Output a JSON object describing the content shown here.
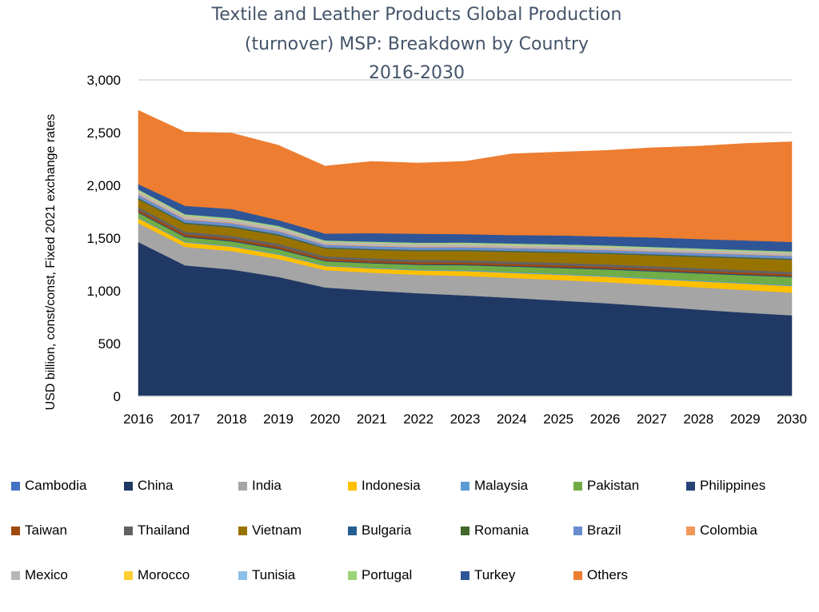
{
  "chart_data": {
    "type": "area",
    "stacked": true,
    "title_lines": [
      "Textile and Leather Products Global Production",
      "(turnover) MSP: Breakdown by Country",
      "2016-2030"
    ],
    "ylabel": "USD billion, const/const, Fixed 2021 exchange rates",
    "xlabel": "",
    "x": [
      "2016",
      "2017",
      "2018",
      "2019",
      "2020",
      "2021",
      "2022",
      "2023",
      "2024",
      "2025",
      "2026",
      "2027",
      "2028",
      "2029",
      "2030"
    ],
    "ylim": [
      0,
      3000
    ],
    "yticks": [
      0,
      500,
      1000,
      1500,
      2000,
      2500,
      3000
    ],
    "ytick_labels": [
      "0",
      "500",
      "1,000",
      "1,500",
      "2,000",
      "2,500",
      "3,000"
    ],
    "grid": true,
    "legend_position": "bottom",
    "series": [
      {
        "name": "Cambodia",
        "color": "#4472c4",
        "values": [
          2,
          2,
          2,
          2,
          2,
          2,
          2,
          2,
          3,
          3,
          3,
          3,
          3,
          3,
          3
        ]
      },
      {
        "name": "China",
        "color": "#203864",
        "values": [
          1460,
          1240,
          1200,
          1130,
          1030,
          1000,
          975,
          955,
          930,
          905,
          880,
          850,
          820,
          790,
          765
        ]
      },
      {
        "name": "India",
        "color": "#a5a5a5",
        "values": [
          180,
          175,
          175,
          170,
          165,
          170,
          175,
          185,
          190,
          195,
          200,
          205,
          210,
          215,
          215
        ]
      },
      {
        "name": "Indonesia",
        "color": "#ffc000",
        "values": [
          45,
          42,
          42,
          42,
          38,
          40,
          42,
          45,
          47,
          50,
          52,
          55,
          57,
          60,
          62
        ]
      },
      {
        "name": "Malaysia",
        "color": "#5b9bd5",
        "values": [
          8,
          8,
          8,
          8,
          7,
          7,
          7,
          8,
          8,
          8,
          8,
          8,
          8,
          8,
          8
        ]
      },
      {
        "name": "Pakistan",
        "color": "#70ad47",
        "values": [
          45,
          42,
          42,
          42,
          38,
          42,
          45,
          48,
          52,
          56,
          60,
          64,
          68,
          72,
          78
        ]
      },
      {
        "name": "Philippines",
        "color": "#264478",
        "values": [
          8,
          8,
          8,
          8,
          7,
          7,
          7,
          8,
          8,
          8,
          8,
          8,
          8,
          8,
          8
        ]
      },
      {
        "name": "Taiwan",
        "color": "#9e480e",
        "values": [
          20,
          20,
          20,
          20,
          18,
          18,
          18,
          18,
          18,
          18,
          18,
          18,
          18,
          18,
          18
        ]
      },
      {
        "name": "Thailand",
        "color": "#636363",
        "values": [
          25,
          24,
          24,
          24,
          22,
          22,
          22,
          22,
          22,
          23,
          23,
          23,
          23,
          23,
          23
        ]
      },
      {
        "name": "Vietnam",
        "color": "#997300",
        "values": [
          75,
          75,
          80,
          80,
          75,
          80,
          85,
          88,
          92,
          96,
          100,
          104,
          108,
          112,
          115
        ]
      },
      {
        "name": "Bulgaria",
        "color": "#255e91",
        "values": [
          5,
          5,
          5,
          5,
          4,
          4,
          4,
          4,
          4,
          4,
          4,
          4,
          4,
          4,
          4
        ]
      },
      {
        "name": "Romania",
        "color": "#43682b",
        "values": [
          7,
          7,
          7,
          7,
          6,
          6,
          6,
          6,
          6,
          6,
          6,
          6,
          6,
          6,
          6
        ]
      },
      {
        "name": "Brazil",
        "color": "#698ed0",
        "values": [
          30,
          28,
          28,
          28,
          24,
          25,
          25,
          25,
          25,
          25,
          25,
          25,
          25,
          25,
          25
        ]
      },
      {
        "name": "Colombia",
        "color": "#f1975a",
        "values": [
          6,
          6,
          6,
          6,
          5,
          5,
          5,
          5,
          5,
          5,
          5,
          5,
          5,
          5,
          5
        ]
      },
      {
        "name": "Mexico",
        "color": "#b7b7b7",
        "values": [
          25,
          24,
          24,
          24,
          20,
          22,
          22,
          22,
          22,
          22,
          22,
          22,
          22,
          22,
          22
        ]
      },
      {
        "name": "Morocco",
        "color": "#ffcd33",
        "values": [
          5,
          5,
          5,
          5,
          4,
          4,
          4,
          4,
          4,
          4,
          4,
          4,
          4,
          4,
          4
        ]
      },
      {
        "name": "Tunisia",
        "color": "#8cc0e8",
        "values": [
          5,
          5,
          5,
          5,
          4,
          4,
          4,
          4,
          4,
          4,
          4,
          4,
          4,
          4,
          4
        ]
      },
      {
        "name": "Portugal",
        "color": "#9bd37a",
        "values": [
          10,
          10,
          10,
          10,
          9,
          9,
          9,
          9,
          9,
          9,
          9,
          9,
          9,
          9,
          9
        ]
      },
      {
        "name": "Turkey",
        "color": "#2f5597",
        "values": [
          50,
          80,
          85,
          55,
          65,
          80,
          85,
          80,
          80,
          85,
          85,
          90,
          90,
          90,
          90
        ]
      },
      {
        "name": "Others",
        "color": "#ed7d31",
        "values": [
          700,
          700,
          720,
          710,
          640,
          680,
          670,
          690,
          770,
          790,
          815,
          850,
          880,
          920,
          950
        ]
      }
    ]
  }
}
